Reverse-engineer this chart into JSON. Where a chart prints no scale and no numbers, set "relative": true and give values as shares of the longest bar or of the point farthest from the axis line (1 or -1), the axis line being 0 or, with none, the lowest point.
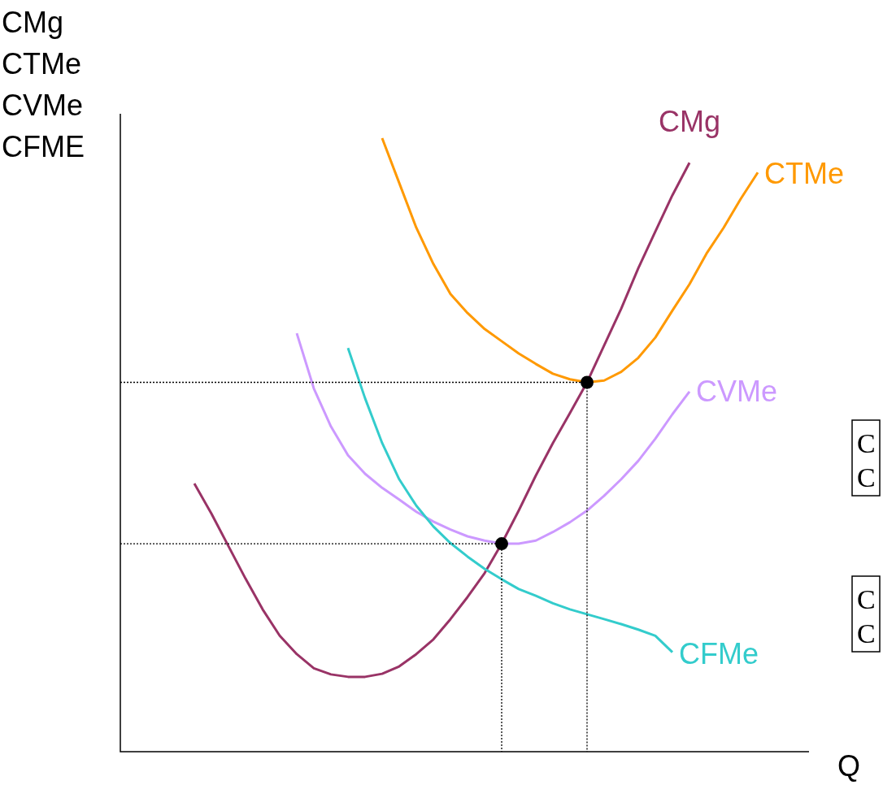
{
  "chart_data": {
    "type": "line",
    "relative": true,
    "xlabel": "Q",
    "ylabel": "CMg\nCTMe\nCVMe\nCFME",
    "categories": [
      null,
      null,
      null,
      null,
      null,
      null,
      null,
      null,
      null,
      null,
      null,
      null,
      null,
      null,
      null,
      null,
      null,
      null,
      null,
      null,
      null,
      null,
      null,
      null,
      null,
      null,
      null,
      null,
      null,
      null,
      null,
      null,
      null,
      null,
      null,
      null,
      null,
      null,
      null,
      null,
      null
    ],
    "series": [
      {
        "name": "CMg",
        "color": "#993366",
        "values": [
          null,
          null,
          null,
          null,
          0.437,
          0.388,
          0.335,
          0.282,
          0.232,
          0.189,
          0.159,
          0.136,
          0.126,
          0.122,
          0.122,
          0.127,
          0.139,
          0.159,
          0.183,
          0.216,
          0.252,
          0.291,
          0.339,
          0.393,
          0.45,
          0.503,
          0.552,
          0.602,
          0.662,
          0.722,
          0.788,
          0.848,
          0.907,
          0.96,
          null,
          null,
          null,
          null,
          null,
          null,
          null
        ]
      },
      {
        "name": "CTMe",
        "color": "#ff9900",
        "values": [
          null,
          null,
          null,
          null,
          null,
          null,
          null,
          null,
          null,
          null,
          null,
          null,
          null,
          null,
          null,
          1,
          0.927,
          0.854,
          0.795,
          0.746,
          0.715,
          0.689,
          0.669,
          0.649,
          0.632,
          0.616,
          0.607,
          0.602,
          0.605,
          0.619,
          0.642,
          0.675,
          0.719,
          0.762,
          0.812,
          0.854,
          0.901,
          0.944,
          null,
          null,
          null
        ]
      },
      {
        "name": "CVMe",
        "color": "#cc99ff",
        "values": [
          null,
          null,
          null,
          null,
          null,
          null,
          null,
          null,
          null,
          null,
          0.682,
          0.592,
          0.53,
          0.483,
          0.453,
          0.43,
          0.411,
          0.391,
          0.375,
          0.362,
          0.351,
          0.344,
          0.339,
          0.339,
          0.344,
          0.358,
          0.374,
          0.393,
          0.417,
          0.444,
          0.474,
          0.51,
          0.55,
          0.587,
          null,
          null,
          null,
          null,
          null,
          null,
          null
        ]
      },
      {
        "name": "CFMe",
        "color": "#33cccc",
        "values": [
          null,
          null,
          null,
          null,
          null,
          null,
          null,
          null,
          null,
          null,
          null,
          null,
          null,
          0.658,
          0.576,
          0.503,
          0.444,
          0.401,
          0.367,
          0.34,
          0.318,
          0.298,
          0.281,
          0.265,
          0.254,
          0.242,
          0.232,
          0.224,
          0.216,
          0.208,
          0.199,
          0.189,
          0.162,
          null,
          null,
          null,
          null,
          null,
          null,
          null,
          null
        ]
      }
    ],
    "ref_lines": [
      {
        "axis": "y",
        "value": 0.602,
        "line_style": "dotted",
        "color": "#000000"
      },
      {
        "axis": "y",
        "value": 0.339,
        "line_style": "dotted",
        "color": "#000000"
      }
    ],
    "annotations": [
      "C\nC",
      "C\nC"
    ]
  }
}
